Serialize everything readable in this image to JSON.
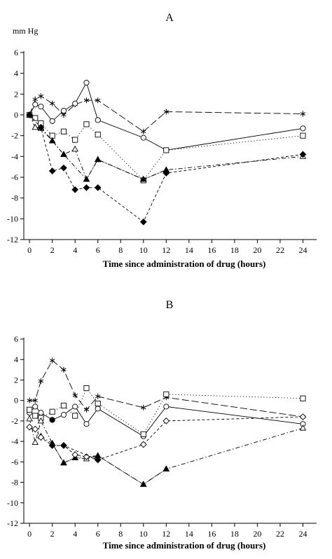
{
  "chart_data": [
    {
      "type": "line",
      "title": "A",
      "ylabel": "mm Hg",
      "xlabel": "Time since administration of drug (hours)",
      "xlim": [
        -0.5,
        25.2
      ],
      "ylim": [
        -12,
        6
      ],
      "xticks": [
        0,
        2,
        4,
        6,
        8,
        10,
        12,
        14,
        16,
        18,
        20,
        22,
        24
      ],
      "yticks": [
        6,
        4,
        2,
        0,
        -2,
        -4,
        -6,
        -8,
        -10,
        -12
      ],
      "legend": "none",
      "grid": false,
      "series": [
        {
          "marker": "asterisk",
          "dash": "long-dash",
          "points": [
            [
              0,
              0
            ],
            [
              0.5,
              1.5
            ],
            [
              1,
              1.8
            ],
            [
              2,
              1.1
            ],
            [
              3,
              0
            ],
            [
              4,
              1
            ],
            [
              5,
              1.4
            ],
            [
              6,
              1.4
            ],
            [
              10,
              -1.6
            ],
            [
              12,
              0.3
            ],
            [
              24,
              0.1
            ]
          ]
        },
        {
          "marker": "circle",
          "dash": "solid",
          "points": [
            [
              0,
              0
            ],
            [
              0.5,
              1
            ],
            [
              1,
              0.8
            ],
            [
              2,
              -0.6
            ],
            [
              3,
              0.4
            ],
            [
              4,
              1.1
            ],
            [
              5,
              3.1
            ],
            [
              6,
              -0.5
            ],
            [
              10,
              -2.2
            ],
            [
              12,
              -3.4
            ],
            [
              24,
              -1.3
            ]
          ]
        },
        {
          "marker": "square",
          "dash": "dotted",
          "points": [
            [
              0,
              0
            ],
            [
              0.5,
              -0.3
            ],
            [
              1,
              -0.8
            ],
            [
              2,
              -2
            ],
            [
              3,
              -1.6
            ],
            [
              4,
              -2.4
            ],
            [
              5,
              -0.9
            ],
            [
              6,
              -1.9
            ],
            [
              10,
              -6.3
            ],
            [
              12,
              -3.4
            ],
            [
              24,
              -2
            ]
          ]
        },
        {
          "marker": "triangle-open",
          "dash": "dash-dot",
          "points": [
            [
              0,
              0
            ],
            [
              0.5,
              -1.2
            ],
            [
              1,
              -1.3
            ],
            [
              2,
              -2.5
            ],
            [
              3,
              -3.8
            ],
            [
              4,
              -3.3
            ],
            [
              5,
              -6.2
            ],
            [
              6,
              -4.3
            ],
            [
              10,
              -6.2
            ],
            [
              12,
              -5.3
            ],
            [
              24,
              -4
            ]
          ]
        },
        {
          "marker": "triangle-filled",
          "dash": "dash-dot",
          "points": [
            [
              1,
              -1.2
            ],
            [
              2,
              -2.5
            ],
            [
              3,
              -3.8
            ],
            [
              5,
              -6.2
            ],
            [
              6,
              -4.3
            ],
            [
              10,
              -6.2
            ],
            [
              12,
              -5.3
            ]
          ]
        },
        {
          "marker": "diamond-filled",
          "dash": "short-dash",
          "points": [
            [
              0,
              0
            ],
            [
              1,
              -1.2
            ],
            [
              2,
              -5.4
            ],
            [
              3,
              -5.1
            ],
            [
              4,
              -7.2
            ],
            [
              5,
              -7
            ],
            [
              6,
              -7
            ],
            [
              10,
              -10.3
            ],
            [
              12,
              -5.6
            ],
            [
              24,
              -3.8
            ]
          ]
        }
      ]
    },
    {
      "type": "line",
      "title": "B",
      "ylabel": "",
      "xlabel": "Time since administration of drug (hours)",
      "xlim": [
        -0.5,
        25.2
      ],
      "ylim": [
        -12,
        6
      ],
      "xticks": [
        0,
        2,
        4,
        6,
        8,
        10,
        12,
        14,
        16,
        18,
        20,
        22,
        24
      ],
      "yticks": [
        6,
        4,
        2,
        0,
        -2,
        -4,
        -6,
        -8,
        -10,
        -12
      ],
      "legend": "none",
      "grid": false,
      "series": [
        {
          "marker": "asterisk",
          "dash": "long-dash",
          "points": [
            [
              0,
              0
            ],
            [
              0.5,
              0
            ],
            [
              1,
              1.9
            ],
            [
              2,
              3.9
            ],
            [
              3,
              3
            ],
            [
              4,
              0.5
            ],
            [
              5,
              -0.9
            ],
            [
              6,
              0.4
            ],
            [
              10,
              -0.7
            ],
            [
              12,
              0.3
            ],
            [
              24,
              -1.6
            ]
          ]
        },
        {
          "marker": "circle",
          "dash": "solid",
          "points": [
            [
              0,
              -1.2
            ],
            [
              0.5,
              -0.6
            ],
            [
              1,
              -1.2
            ],
            [
              2,
              -1.9
            ],
            [
              3,
              -1.4
            ],
            [
              4,
              -0.6
            ],
            [
              5,
              -2.3
            ],
            [
              6,
              -0.8
            ],
            [
              10,
              -3.5
            ],
            [
              12,
              -0.6
            ],
            [
              24,
              -2.3
            ]
          ]
        },
        {
          "marker": "square",
          "dash": "dotted",
          "points": [
            [
              0,
              -0.9
            ],
            [
              0.5,
              -1.5
            ],
            [
              1,
              -1.7
            ],
            [
              2,
              -1.1
            ],
            [
              3,
              -0.5
            ],
            [
              4,
              -1.5
            ],
            [
              5,
              1.2
            ],
            [
              6,
              -0.3
            ],
            [
              10,
              -3.3
            ],
            [
              12,
              0.6
            ],
            [
              24,
              0.2
            ]
          ]
        },
        {
          "marker": "triangle-open",
          "dash": "dash-dot",
          "points": [
            [
              0,
              -1.8
            ],
            [
              0.5,
              -4.1
            ],
            [
              1,
              -2
            ],
            [
              2,
              -4.2
            ],
            [
              3,
              -6.1
            ],
            [
              4,
              -5.6
            ],
            [
              5,
              -5.7
            ],
            [
              6,
              -5.4
            ],
            [
              10,
              -8.2
            ],
            [
              12,
              -6.7
            ],
            [
              24,
              -2.7
            ]
          ]
        },
        {
          "marker": "triangle-filled",
          "dash": "dash-dot",
          "points": [
            [
              1,
              -3.5
            ],
            [
              2,
              -4.2
            ],
            [
              3,
              -6.1
            ],
            [
              4,
              -5.6
            ],
            [
              6,
              -5.4
            ],
            [
              10,
              -8.2
            ],
            [
              12,
              -6.7
            ]
          ]
        },
        {
          "marker": "diamond-open",
          "dash": "short-dash",
          "points": [
            [
              0,
              -2.6
            ],
            [
              0.5,
              -2.8
            ],
            [
              1,
              -3.6
            ],
            [
              2,
              -4.4
            ],
            [
              3,
              -4.4
            ],
            [
              4,
              -5.3
            ],
            [
              5,
              -5.5
            ],
            [
              6,
              -5.8
            ],
            [
              10,
              -4.3
            ],
            [
              12,
              -2
            ],
            [
              24,
              -1.6
            ]
          ]
        },
        {
          "marker": "diamond-filled",
          "dash": "short-dash",
          "points": [
            [
              2,
              -4.4
            ],
            [
              3,
              -4.4
            ],
            [
              6,
              -5.8
            ]
          ]
        },
        {
          "marker": "circle-filled",
          "dash": "solid",
          "points": [
            [
              2,
              -1.9
            ]
          ]
        }
      ]
    }
  ]
}
